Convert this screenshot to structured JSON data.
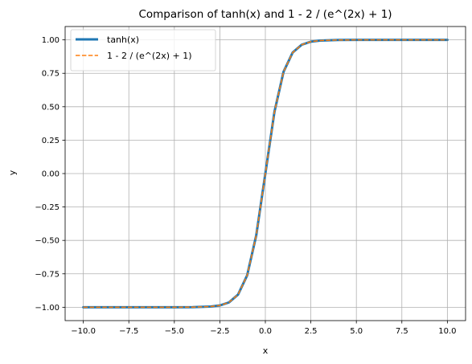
{
  "chart_data": {
    "type": "line",
    "title": "Comparison of tanh(x) and 1 - 2 / (e^(2x) + 1)",
    "xlabel": "x",
    "ylabel": "y",
    "xlim": [
      -11.0,
      11.0
    ],
    "ylim": [
      -1.1,
      1.1
    ],
    "xticks": [
      -10.0,
      -7.5,
      -5.0,
      -2.5,
      0.0,
      2.5,
      5.0,
      7.5,
      10.0
    ],
    "xtick_labels": [
      "−10.0",
      "−7.5",
      "−5.0",
      "−2.5",
      "0.0",
      "2.5",
      "5.0",
      "7.5",
      "10.0"
    ],
    "yticks": [
      -1.0,
      -0.75,
      -0.5,
      -0.25,
      0.0,
      0.25,
      0.5,
      0.75,
      1.0
    ],
    "ytick_labels": [
      "−1.00",
      "−0.75",
      "−0.50",
      "−0.25",
      "0.00",
      "0.25",
      "0.50",
      "0.75",
      "1.00"
    ],
    "grid": true,
    "legend_position": "top-left",
    "x": [
      -10.0,
      -7.5,
      -5.0,
      -4.0,
      -3.0,
      -2.5,
      -2.0,
      -1.5,
      -1.0,
      -0.5,
      0.0,
      0.5,
      1.0,
      1.5,
      2.0,
      2.5,
      3.0,
      4.0,
      5.0,
      7.5,
      10.0
    ],
    "series": [
      {
        "name": "tanh(x)",
        "color": "#1f77b4",
        "style": "solid",
        "values": [
          -1.0,
          -1.0,
          -0.9999,
          -0.9993,
          -0.9951,
          -0.9866,
          -0.964,
          -0.9051,
          -0.7616,
          -0.4621,
          0.0,
          0.4621,
          0.7616,
          0.9051,
          0.964,
          0.9866,
          0.9951,
          0.9993,
          0.9999,
          1.0,
          1.0
        ]
      },
      {
        "name": "1 - 2 / (e^(2x) + 1)",
        "color": "#ff7f0e",
        "style": "dashed",
        "values": [
          -1.0,
          -1.0,
          -0.9999,
          -0.9993,
          -0.9951,
          -0.9866,
          -0.964,
          -0.9051,
          -0.7616,
          -0.4621,
          0.0,
          0.4621,
          0.7616,
          0.9051,
          0.964,
          0.9866,
          0.9951,
          0.9993,
          0.9999,
          1.0,
          1.0
        ]
      }
    ]
  }
}
